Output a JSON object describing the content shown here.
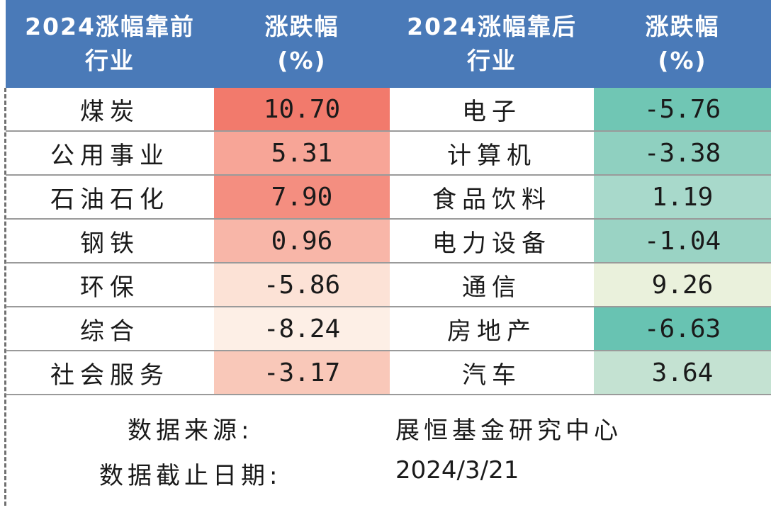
{
  "header": {
    "col1_line1": "2024涨幅靠前",
    "col1_line2": "行业",
    "col2_line1": "涨跌幅",
    "col2_line2": "(%)",
    "col3_line1": "2024涨幅靠后",
    "col3_line2": "行业",
    "col4_line1": "涨跌幅",
    "col4_line2": "(%)"
  },
  "rows": [
    {
      "top_industry": "煤炭",
      "top_change": "10.70",
      "bottom_industry": "电子",
      "bottom_change": "-5.76"
    },
    {
      "top_industry": "公用事业",
      "top_change": "5.31",
      "bottom_industry": "计算机",
      "bottom_change": "-3.38"
    },
    {
      "top_industry": "石油石化",
      "top_change": "7.90",
      "bottom_industry": "食品饮料",
      "bottom_change": "1.19"
    },
    {
      "top_industry": "钢铁",
      "top_change": "0.96",
      "bottom_industry": "电力设备",
      "bottom_change": "-1.04"
    },
    {
      "top_industry": "环保",
      "top_change": "-5.86",
      "bottom_industry": "通信",
      "bottom_change": "9.26"
    },
    {
      "top_industry": "综合",
      "top_change": "-8.24",
      "bottom_industry": "房地产",
      "bottom_change": "-6.63"
    },
    {
      "top_industry": "社会服务",
      "top_change": "-3.17",
      "bottom_industry": "汽车",
      "bottom_change": "3.64"
    }
  ],
  "colors": {
    "header_bg": "#4a7ab8",
    "top_change_fills": [
      "#f27a6c",
      "#f7a597",
      "#f48e80",
      "#f8b6a8",
      "#fce2d6",
      "#fdefe6",
      "#f9c8b9"
    ],
    "bottom_change_fills": [
      "#70c6b4",
      "#8fd0c0",
      "#a8d9cb",
      "#9ad3c4",
      "#eaf1dc",
      "#68c3b2",
      "#c4e2d2"
    ]
  },
  "footer": {
    "source_label": "数据来源:",
    "source_value": "展恒基金研究中心",
    "date_label": "数据截止日期:",
    "date_value": "2024/3/21"
  }
}
